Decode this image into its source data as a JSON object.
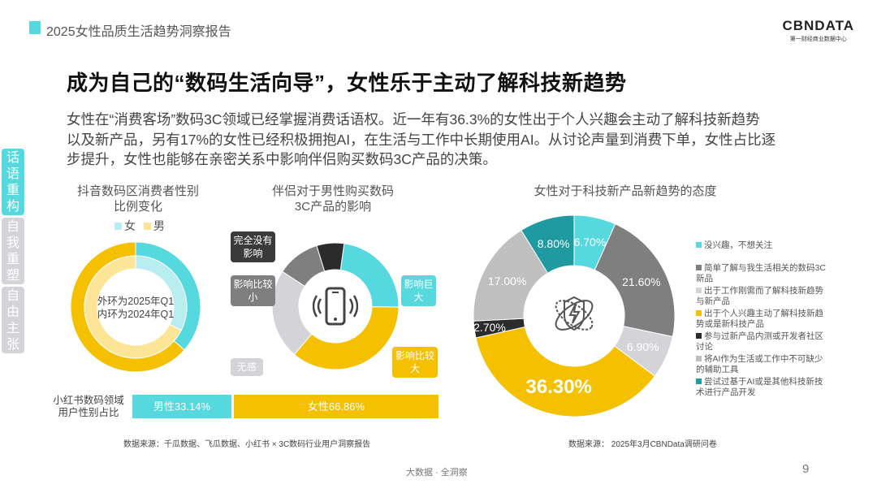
{
  "header": {
    "report_title": "2025女性品质生活趋势洞察报告",
    "logo": "CBNDATA",
    "logo_sub": "第一财经商业数据中心"
  },
  "title": "成为自己的“数码生活向导”，女性乐于主动了解科技新趋势",
  "body": [
    "女性在“消费客场”数码3C领域已经掌握消费话语权。近一年有36.3%的女性出于个人兴趣会主动了解科技新趋势",
    "以及新产品，另有17%的女性已经积极拥抱AI，在生活与工作中长期使用AI。从讨论声量到消费下单，女性占比逐",
    "步提升，女性也能够在亲密关系中影响伴侣购买数码3C产品的决策。"
  ],
  "side_tabs": [
    {
      "label": "话语重构",
      "active": true
    },
    {
      "label": "自我重塑",
      "active": false
    },
    {
      "label": "自由主张",
      "active": false
    }
  ],
  "colors": {
    "cyan": "#55d8de",
    "yellow": "#f5c000",
    "teal": "#1e9aa0",
    "dark": "#2b2b2b",
    "gray": "#7f7f7f",
    "lightgray": "#d4d3d8",
    "midgray": "#bfbfbf"
  },
  "chart_data": [
    {
      "type": "pie",
      "title": "抖音数码区消费者性别比例变化",
      "title_lines": [
        "抖音数码区消费者性别",
        "比例变化"
      ],
      "legend": [
        "女",
        "男"
      ],
      "center_text": [
        "外环为2025年Q1",
        "内环为2024年Q1"
      ],
      "series": [
        {
          "name": "2025年Q1",
          "values": [
            36.5,
            63.5
          ]
        },
        {
          "name": "2024年Q1",
          "values": [
            32.5,
            67.5
          ]
        }
      ]
    },
    {
      "type": "pie",
      "title_lines": [
        "伴侣对于男性购买数码",
        "3C产品的影响"
      ],
      "categories": [
        "影响巨大",
        "影响比较大",
        "无感",
        "影响比较小",
        "完全没有影响"
      ],
      "values": [
        23,
        36,
        23,
        11,
        7
      ]
    },
    {
      "type": "bar",
      "title": "小红书数码领域用户性别占比",
      "label_lines": [
        "小红书数码领域",
        "用户性别占比"
      ],
      "categories": [
        "男性",
        "女性"
      ],
      "values": [
        33.14,
        66.86
      ],
      "labels": [
        "男性33.14%",
        "女性66.86%"
      ]
    },
    {
      "type": "pie",
      "title": "女性对于科技新产品新趋势的态度",
      "categories": [
        "没兴趣，不想关注",
        "简单了解与我生活相关的数码3C新品",
        "出于工作刚需而了解科技新趋势与新产品",
        "出于个人兴趣主动了解科技新趋势或是新科技产品",
        "参与过新产品内测或开发者社区讨论",
        "将AI作为生活或工作中不可缺少的辅助工具",
        "尝试过基于AI或是其他科技新技术进行产品开发"
      ],
      "values": [
        6.7,
        21.6,
        6.9,
        36.3,
        2.7,
        17.0,
        8.8
      ],
      "labels": [
        "6.70%",
        "21.60%",
        "6.90%",
        "36.30%",
        "2.70%",
        "17.00%",
        "8.80%"
      ],
      "legend_lines": [
        [
          "没兴趣，不想关注"
        ],
        [
          "简单了解与我生活相关的数码3C",
          "新品"
        ],
        [
          "出于工作刚需而了解科技新趋势",
          "与新产品"
        ],
        [
          "出于个人兴趣主动了解科技新趋",
          "势或是新科技产品"
        ],
        [
          "参与过新产品内测或开发者社区",
          "讨论"
        ],
        [
          "将AI作为生活或工作中不可缺少",
          "的辅助工具"
        ],
        [
          "尝试过基于AI或是其他科技新技",
          "术进行产品开发"
        ]
      ]
    }
  ],
  "sources": {
    "left": "数据来源：千瓜数据、飞瓜数据、小红书 × 3C数码行业用户洞察报告",
    "right": "数据来源：  2025年3月CBNData调研问卷"
  },
  "footer": {
    "center": "大数据 · 全洞察",
    "page": "9"
  }
}
